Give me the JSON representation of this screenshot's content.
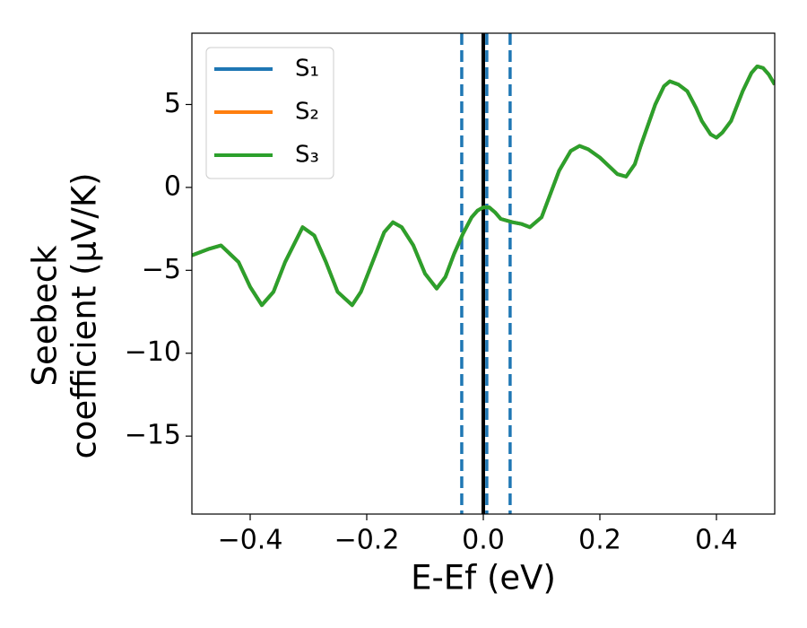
{
  "chart_data": {
    "type": "line",
    "xlabel": "E-Ef (eV)",
    "ylabel": [
      "Seebeck",
      "coefficient  (μV/K)"
    ],
    "x": [
      -0.5,
      -0.47,
      -0.45,
      -0.42,
      -0.4,
      -0.38,
      -0.36,
      -0.34,
      -0.31,
      -0.29,
      -0.27,
      -0.25,
      -0.225,
      -0.21,
      -0.19,
      -0.17,
      -0.155,
      -0.14,
      -0.12,
      -0.1,
      -0.08,
      -0.065,
      -0.05,
      -0.035,
      -0.02,
      -0.01,
      0.0,
      0.01,
      0.02,
      0.03,
      0.05,
      0.065,
      0.08,
      0.1,
      0.115,
      0.13,
      0.15,
      0.165,
      0.18,
      0.2,
      0.215,
      0.23,
      0.245,
      0.26,
      0.27,
      0.285,
      0.295,
      0.31,
      0.32,
      0.335,
      0.35,
      0.365,
      0.375,
      0.39,
      0.4,
      0.41,
      0.425,
      0.445,
      0.46,
      0.47,
      0.48,
      0.49,
      0.5
    ],
    "series": [
      {
        "name": "S₁",
        "color": "#1f77b4",
        "values": [
          -4.1,
          -3.7,
          -3.5,
          -4.5,
          -6.0,
          -7.1,
          -6.3,
          -4.5,
          -2.4,
          -2.9,
          -4.5,
          -6.3,
          -7.1,
          -6.3,
          -4.5,
          -2.7,
          -2.1,
          -2.4,
          -3.5,
          -5.2,
          -6.1,
          -5.4,
          -4.0,
          -2.8,
          -1.8,
          -1.4,
          -1.2,
          -1.2,
          -1.5,
          -1.9,
          -2.1,
          -2.2,
          -2.4,
          -1.8,
          -0.4,
          1.0,
          2.2,
          2.5,
          2.3,
          1.8,
          1.3,
          0.8,
          0.65,
          1.4,
          2.5,
          4.0,
          5.0,
          6.1,
          6.4,
          6.2,
          5.8,
          4.8,
          4.0,
          3.2,
          3.0,
          3.3,
          4.0,
          5.8,
          6.9,
          7.3,
          7.2,
          6.8,
          6.2
        ]
      },
      {
        "name": "S₂",
        "color": "#ff7f0e",
        "values": [
          -4.1,
          -3.7,
          -3.5,
          -4.5,
          -6.0,
          -7.1,
          -6.3,
          -4.5,
          -2.4,
          -2.9,
          -4.5,
          -6.3,
          -7.1,
          -6.3,
          -4.5,
          -2.7,
          -2.1,
          -2.4,
          -3.5,
          -5.2,
          -6.1,
          -5.4,
          -4.0,
          -2.8,
          -1.8,
          -1.4,
          -1.2,
          -1.2,
          -1.5,
          -1.9,
          -2.1,
          -2.2,
          -2.4,
          -1.8,
          -0.4,
          1.0,
          2.2,
          2.5,
          2.3,
          1.8,
          1.3,
          0.8,
          0.65,
          1.4,
          2.5,
          4.0,
          5.0,
          6.1,
          6.4,
          6.2,
          5.8,
          4.8,
          4.0,
          3.2,
          3.0,
          3.3,
          4.0,
          5.8,
          6.9,
          7.3,
          7.2,
          6.8,
          6.2
        ]
      },
      {
        "name": "S₃",
        "color": "#2ca02c",
        "values": [
          -4.1,
          -3.7,
          -3.5,
          -4.5,
          -6.0,
          -7.1,
          -6.3,
          -4.5,
          -2.4,
          -2.9,
          -4.5,
          -6.3,
          -7.1,
          -6.3,
          -4.5,
          -2.7,
          -2.1,
          -2.4,
          -3.5,
          -5.2,
          -6.1,
          -5.4,
          -4.0,
          -2.8,
          -1.8,
          -1.4,
          -1.2,
          -1.2,
          -1.5,
          -1.9,
          -2.1,
          -2.2,
          -2.4,
          -1.8,
          -0.4,
          1.0,
          2.2,
          2.5,
          2.3,
          1.8,
          1.3,
          0.8,
          0.65,
          1.4,
          2.5,
          4.0,
          5.0,
          6.1,
          6.4,
          6.2,
          5.8,
          4.8,
          4.0,
          3.2,
          3.0,
          3.3,
          4.0,
          5.8,
          6.9,
          7.3,
          7.2,
          6.8,
          6.2
        ]
      }
    ],
    "vlines": [
      {
        "x": -0.037,
        "color": "#1f77b4",
        "style": "dashed"
      },
      {
        "x": 0.006,
        "color": "#1f77b4",
        "style": "dashed"
      },
      {
        "x": 0.046,
        "color": "#1f77b4",
        "style": "dashed"
      },
      {
        "x": 0,
        "color": "#000000",
        "style": "solid"
      }
    ],
    "xlim": [
      -0.5,
      0.5
    ],
    "ylim": [
      -19.7,
      9.3
    ],
    "xticks": [
      {
        "value": -0.4,
        "label": "−0.4"
      },
      {
        "value": -0.2,
        "label": "−0.2"
      },
      {
        "value": 0,
        "label": "0.0"
      },
      0.2,
      0.4
    ],
    "yticks": [
      {
        "value": -15,
        "label": "−15"
      },
      {
        "value": -10,
        "label": "−10"
      },
      {
        "value": -5,
        "label": "−5"
      },
      0,
      5
    ],
    "legend": "upper left",
    "grid": false
  }
}
